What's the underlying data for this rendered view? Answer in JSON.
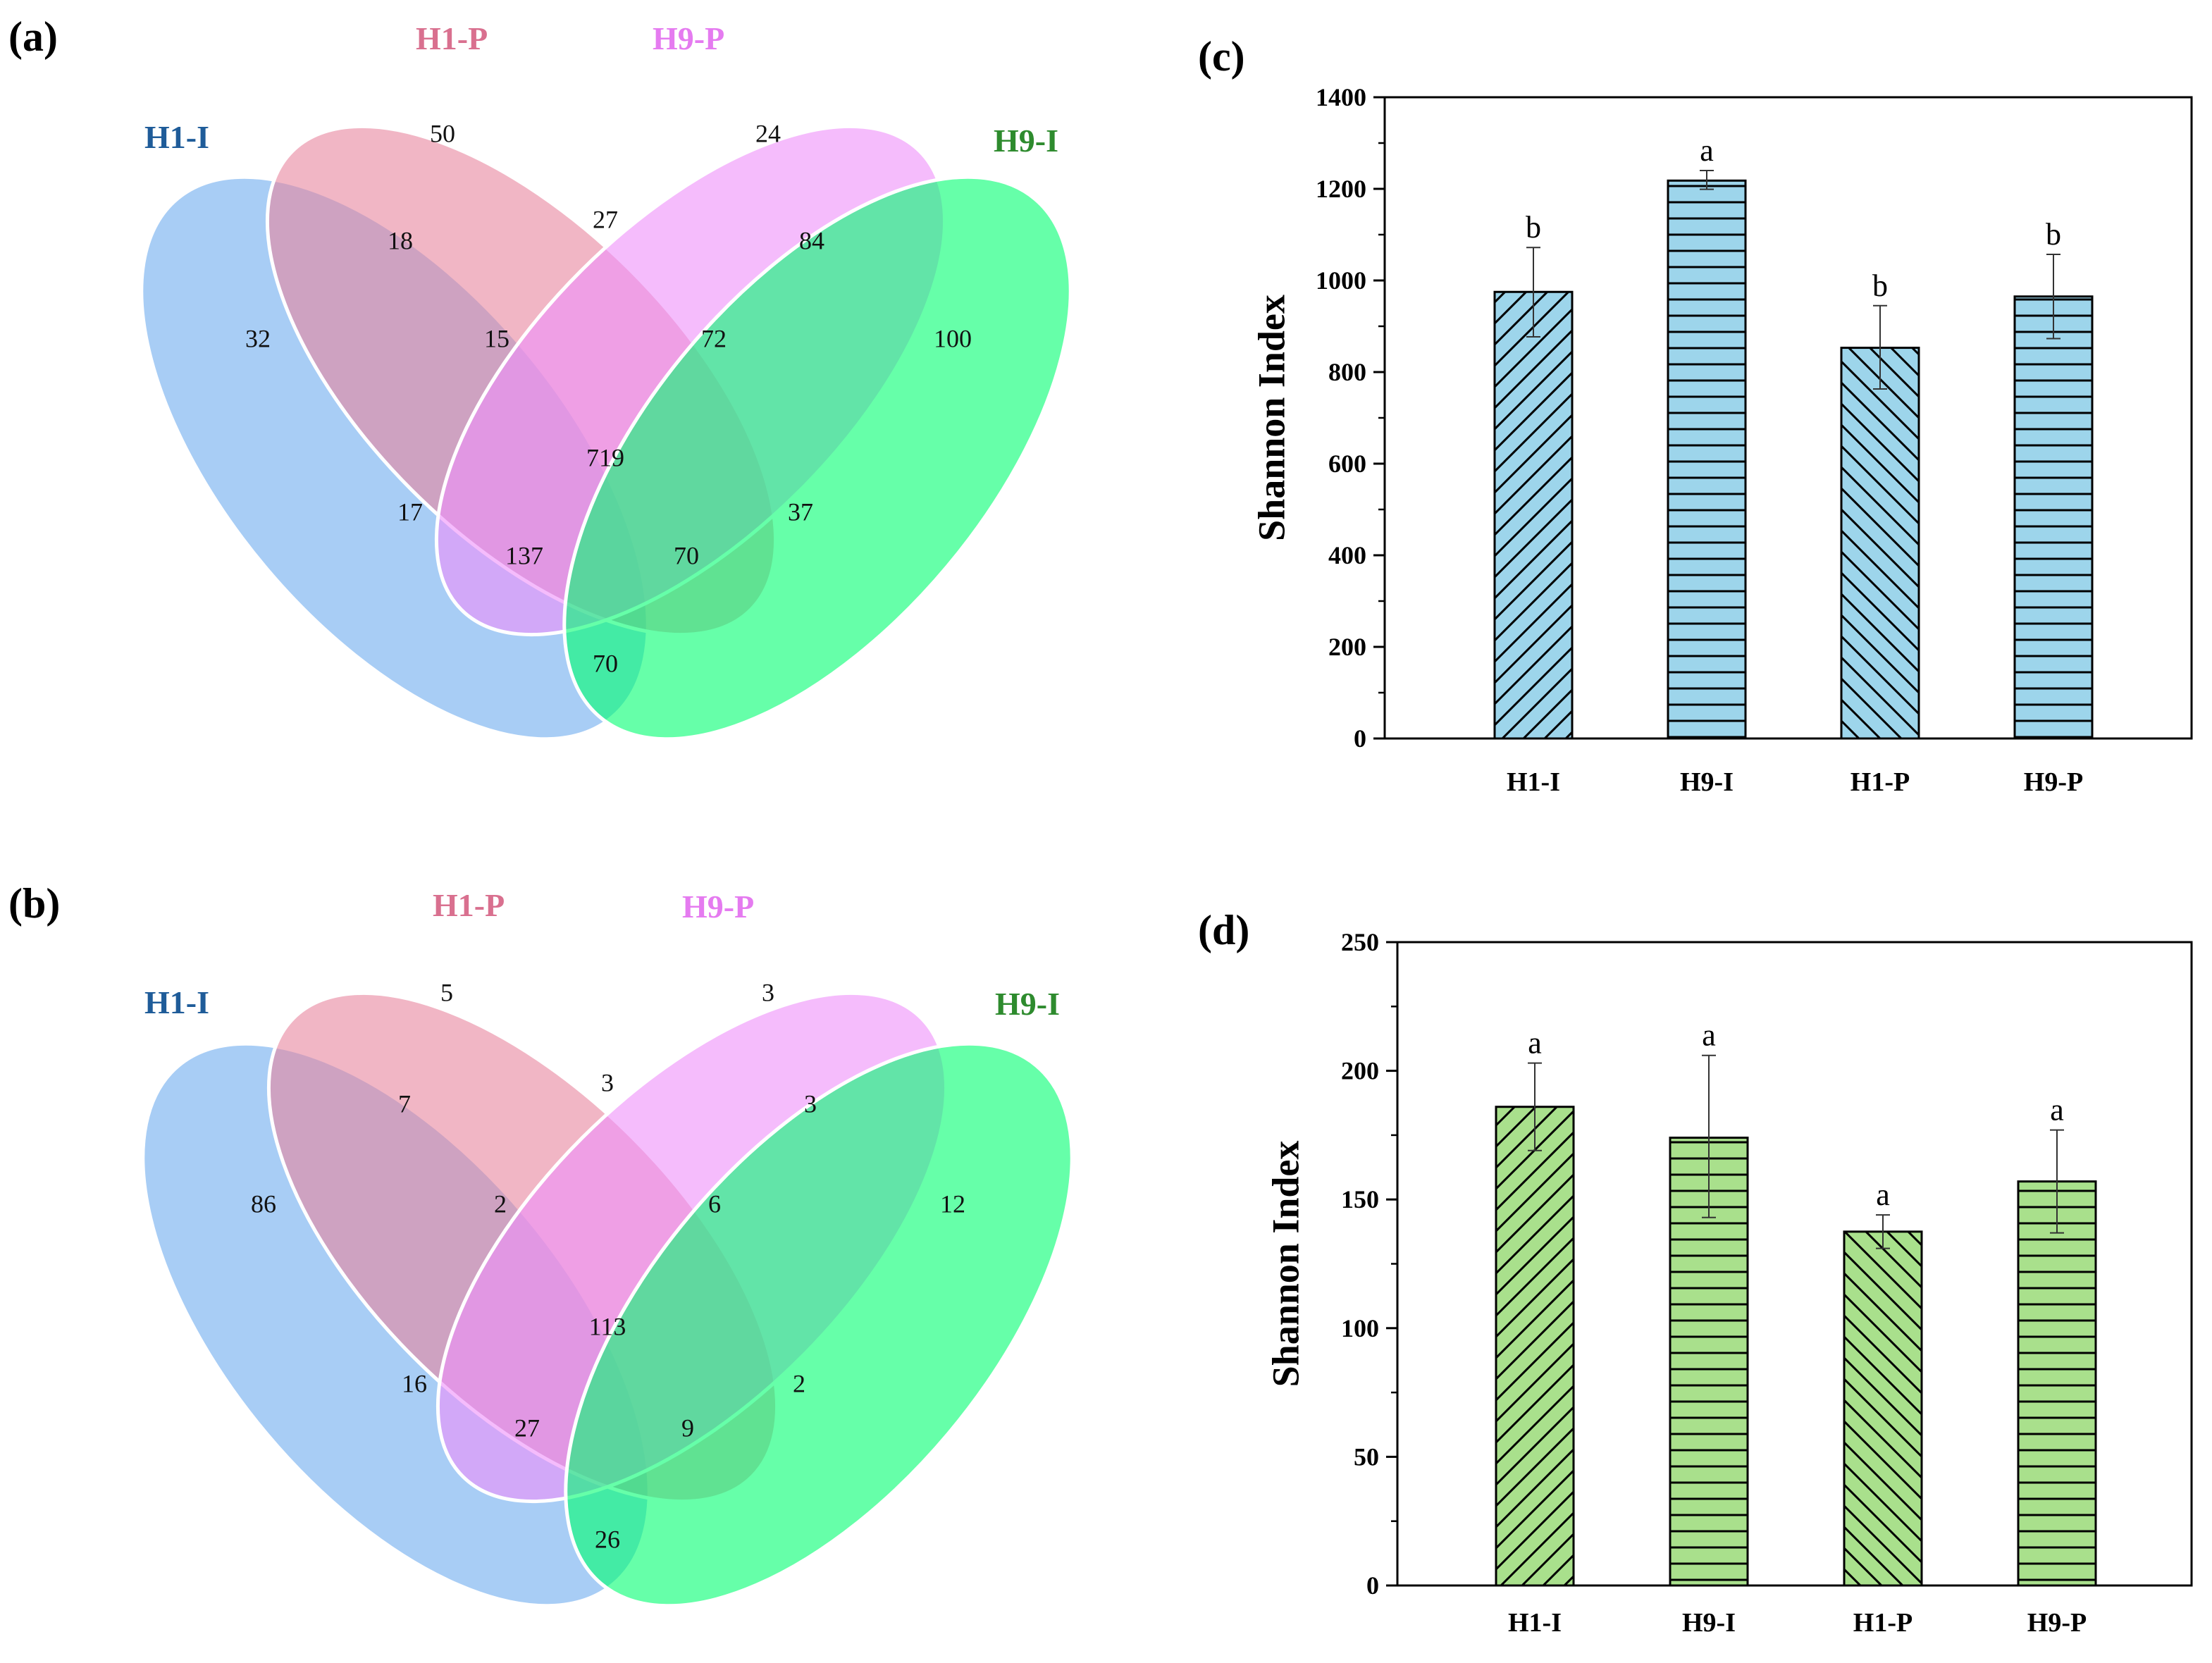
{
  "panels": {
    "a": "(a)",
    "b": "(b)",
    "c": "(c)",
    "d": "(d)"
  },
  "venn_sets": [
    {
      "name": "H1-I",
      "label_color": "#1F5C99",
      "fill": "#8FBFF2"
    },
    {
      "name": "H1-P",
      "label_color": "#D9708F",
      "fill": "#E8869F"
    },
    {
      "name": "H9-P",
      "label_color": "#E57BF0",
      "fill": "#EE90FA"
    },
    {
      "name": "H9-I",
      "label_color": "#2E8B2E",
      "fill": "#00FF70"
    }
  ],
  "venn_a": {
    "H1I": "32",
    "H1P": "50",
    "H9P": "24",
    "H9I": "100",
    "H1I_H1P": "18",
    "H1P_H9P": "27",
    "H9P_H9I": "84",
    "H1I_H1P_H9P": "15",
    "H1P_H9P_H9I": "72",
    "all": "719",
    "H1I_H9P": "17",
    "H1P_H9I": "37",
    "H1I_H9P_H9I": "137",
    "H1I_H1P_H9I": "70",
    "H1I_H9I": "70"
  },
  "venn_b": {
    "H1I": "86",
    "H1P": "5",
    "H9P": "3",
    "H9I": "12",
    "H1I_H1P": "7",
    "H1P_H9P": "3",
    "H9P_H9I": "3",
    "H1I_H1P_H9P": "2",
    "H1P_H9P_H9I": "6",
    "all": "113",
    "H1I_H9P": "16",
    "H1P_H9I": "2",
    "H1I_H9P_H9I": "27",
    "H1I_H1P_H9I": "9",
    "H1I_H9I": "26"
  },
  "chart_data": [
    {
      "panel": "c",
      "type": "bar",
      "categories": [
        "H1-I",
        "H9-I",
        "H1-P",
        "H9-P"
      ],
      "values": [
        975,
        1218,
        853,
        965
      ],
      "error_low": [
        877,
        1199,
        763,
        873
      ],
      "error_high": [
        1072,
        1240,
        945,
        1057
      ],
      "significance": [
        "b",
        "a",
        "b",
        "b"
      ],
      "patterns": [
        "diag-right",
        "horizontal",
        "diag-left",
        "horizontal"
      ],
      "bar_color": "#9DD5EB",
      "ylabel": "Shannon Index",
      "xlabel": "",
      "ylim": [
        0,
        1400
      ],
      "yticks": [
        0,
        200,
        400,
        600,
        800,
        1000,
        1200,
        1400
      ],
      "tick_labels": [
        "0",
        "200",
        "400",
        "600",
        "800",
        "1000",
        "1200",
        "1400"
      ]
    },
    {
      "panel": "d",
      "type": "bar",
      "categories": [
        "H1-I",
        "H9-I",
        "H1-P",
        "H9-P"
      ],
      "values": [
        186,
        174,
        137.5,
        157
      ],
      "error_low": [
        169,
        143,
        131,
        137
      ],
      "error_high": [
        203,
        206,
        144,
        177
      ],
      "significance": [
        "a",
        "a",
        "a",
        "a"
      ],
      "patterns": [
        "diag-right",
        "horizontal",
        "diag-left",
        "horizontal"
      ],
      "bar_color": "#A9E08C",
      "ylabel": "Shannon Index",
      "xlabel": "",
      "ylim": [
        0,
        250
      ],
      "yticks": [
        0,
        50,
        100,
        150,
        200,
        250
      ],
      "tick_labels": [
        "0",
        "50",
        "100",
        "150",
        "200",
        "250"
      ]
    }
  ]
}
